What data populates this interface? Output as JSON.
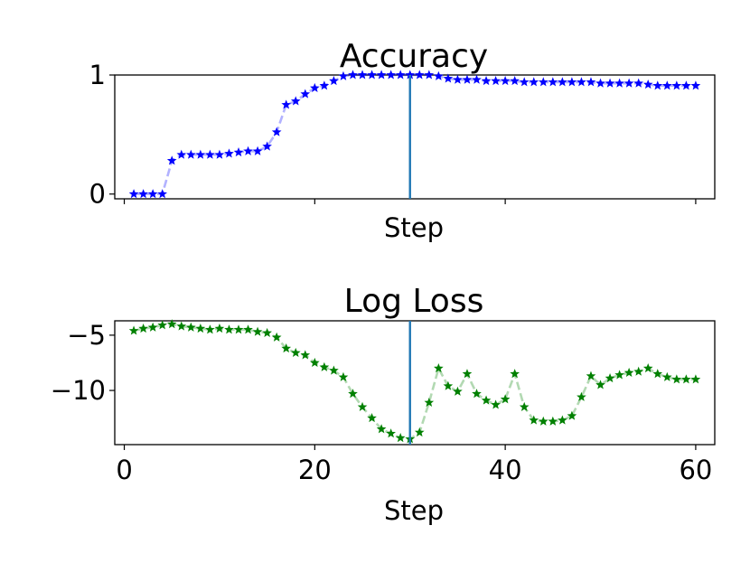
{
  "chart_data": [
    {
      "type": "line",
      "title": "Accuracy",
      "xlabel": "Step",
      "ylabel": "",
      "xlim": [
        -1,
        62
      ],
      "ylim": [
        -0.04,
        1.0
      ],
      "xticks": [
        0,
        20,
        40,
        60
      ],
      "show_xtick_labels": false,
      "yticks": [
        0,
        1
      ],
      "ytick_labels": [
        "0",
        "1"
      ],
      "vline_x": 30,
      "colors": {
        "line": "#0000ff",
        "vline": "#1f77b4"
      },
      "marker": "star",
      "grid": false,
      "legend": "none",
      "series": [
        {
          "x": [
            1,
            2,
            3,
            4,
            5,
            6,
            7,
            8,
            9,
            10,
            11,
            12,
            13,
            14,
            15,
            16,
            17,
            18,
            19,
            20,
            21,
            22,
            23,
            24,
            25,
            26,
            27,
            28,
            29,
            30,
            31,
            32,
            33,
            34,
            35,
            36,
            37,
            38,
            39,
            40,
            41,
            42,
            43,
            44,
            45,
            46,
            47,
            48,
            49,
            50,
            51,
            52,
            53,
            54,
            55,
            56,
            57,
            58,
            59,
            60
          ],
          "values": [
            0.0,
            0.0,
            0.0,
            0.0,
            0.28,
            0.33,
            0.33,
            0.33,
            0.33,
            0.33,
            0.34,
            0.35,
            0.36,
            0.36,
            0.4,
            0.52,
            0.75,
            0.78,
            0.84,
            0.89,
            0.91,
            0.95,
            0.99,
            1.0,
            1.0,
            1.0,
            1.0,
            1.0,
            1.0,
            1.0,
            1.0,
            1.0,
            0.99,
            0.97,
            0.96,
            0.96,
            0.96,
            0.95,
            0.95,
            0.95,
            0.95,
            0.94,
            0.94,
            0.94,
            0.94,
            0.94,
            0.94,
            0.94,
            0.94,
            0.93,
            0.93,
            0.93,
            0.93,
            0.93,
            0.92,
            0.91,
            0.91,
            0.91,
            0.91,
            0.91
          ]
        }
      ]
    },
    {
      "type": "line",
      "title": "Log Loss",
      "xlabel": "Step",
      "ylabel": "",
      "xlim": [
        -1,
        62
      ],
      "ylim": [
        -14.9,
        -3.7
      ],
      "xticks": [
        0,
        20,
        40,
        60
      ],
      "show_xtick_labels": true,
      "xtick_labels": [
        "0",
        "20",
        "40",
        "60"
      ],
      "yticks": [
        -5,
        -10
      ],
      "ytick_labels": [
        "−5",
        "−10"
      ],
      "vline_x": 30,
      "colors": {
        "line": "#008000",
        "vline": "#1f77b4"
      },
      "marker": "star",
      "grid": false,
      "legend": "none",
      "series": [
        {
          "x": [
            1,
            2,
            3,
            4,
            5,
            6,
            7,
            8,
            9,
            10,
            11,
            12,
            13,
            14,
            15,
            16,
            17,
            18,
            19,
            20,
            21,
            22,
            23,
            24,
            25,
            26,
            27,
            28,
            29,
            30,
            31,
            32,
            33,
            34,
            35,
            36,
            37,
            38,
            39,
            40,
            41,
            42,
            43,
            44,
            45,
            46,
            47,
            48,
            49,
            50,
            51,
            52,
            53,
            54,
            55,
            56,
            57,
            58,
            59,
            60
          ],
          "values": [
            -4.6,
            -4.4,
            -4.3,
            -4.1,
            -4.0,
            -4.2,
            -4.3,
            -4.4,
            -4.5,
            -4.4,
            -4.5,
            -4.5,
            -4.5,
            -4.7,
            -4.8,
            -5.2,
            -6.2,
            -6.6,
            -6.8,
            -7.5,
            -7.9,
            -8.2,
            -8.8,
            -10.3,
            -11.5,
            -12.5,
            -13.5,
            -13.9,
            -14.3,
            -14.4,
            -13.8,
            -11.1,
            -8.0,
            -9.6,
            -10.1,
            -8.5,
            -10.3,
            -10.9,
            -11.3,
            -10.8,
            -8.5,
            -11.5,
            -12.7,
            -12.8,
            -12.8,
            -12.7,
            -12.3,
            -10.6,
            -8.7,
            -9.5,
            -8.9,
            -8.6,
            -8.4,
            -8.3,
            -8.0,
            -8.5,
            -8.8,
            -9.0,
            -9.0,
            -9.0
          ]
        }
      ]
    }
  ]
}
